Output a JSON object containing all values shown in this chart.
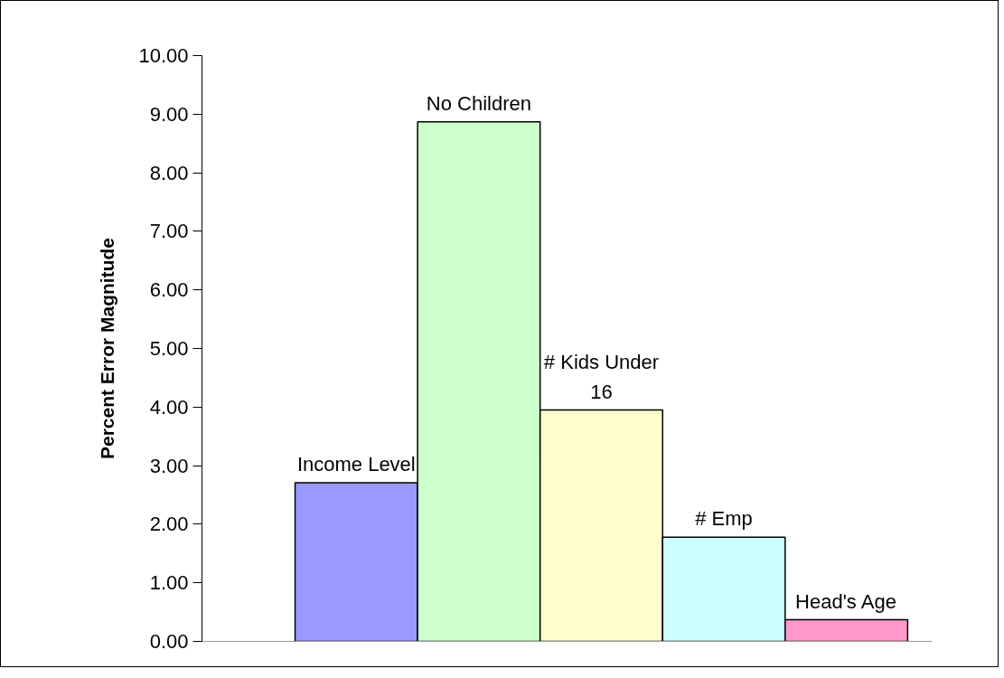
{
  "chart_data": {
    "type": "bar",
    "ylabel": "Percent Error Magnitude",
    "categories": [
      "Income Level",
      "No Children",
      "# Kids Under 16",
      "# Emp",
      "Head's Age"
    ],
    "values": [
      2.71,
      8.87,
      3.95,
      1.78,
      0.37
    ],
    "colors": [
      "#9999ff",
      "#ccffcc",
      "#ffffcc",
      "#ccffff",
      "#ff99cc"
    ],
    "ylim": [
      0,
      10
    ],
    "yticks": [
      {
        "value": 0,
        "label": "0.00"
      },
      {
        "value": 1,
        "label": "1.00"
      },
      {
        "value": 2,
        "label": "2.00"
      },
      {
        "value": 3,
        "label": "3.00"
      },
      {
        "value": 4,
        "label": "4.00"
      },
      {
        "value": 5,
        "label": "5.00"
      },
      {
        "value": 6,
        "label": "6.00"
      },
      {
        "value": 7,
        "label": "7.00"
      },
      {
        "value": 8,
        "label": "8.00"
      },
      {
        "value": 9,
        "label": "9.00"
      },
      {
        "value": 10,
        "label": "10.00"
      }
    ],
    "grid": false,
    "tick_labels": "y"
  }
}
